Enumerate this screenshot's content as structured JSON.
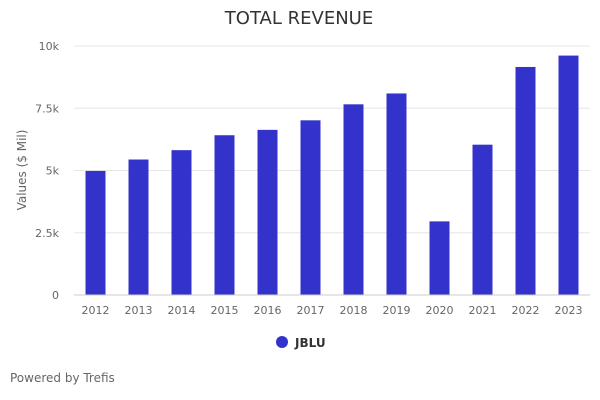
{
  "chart_data": {
    "type": "bar",
    "title": "TOTAL REVENUE",
    "xlabel": "",
    "ylabel": "Values ($ Mil)",
    "ylim": [
      0,
      10000
    ],
    "y_ticks": [
      {
        "value": 0,
        "label": "0"
      },
      {
        "value": 2500,
        "label": "2.5k"
      },
      {
        "value": 5000,
        "label": "5k"
      },
      {
        "value": 7500,
        "label": "7.5k"
      },
      {
        "value": 10000,
        "label": "10k"
      }
    ],
    "categories": [
      "2012",
      "2013",
      "2014",
      "2015",
      "2016",
      "2017",
      "2018",
      "2019",
      "2020",
      "2021",
      "2022",
      "2023"
    ],
    "series": [
      {
        "name": "JBLU",
        "color": "#3333cc",
        "values": [
          4982,
          5441,
          5817,
          6416,
          6632,
          7015,
          7658,
          8094,
          2957,
          6037,
          9158,
          9615
        ]
      }
    ],
    "legend_position": "bottom",
    "credit": "Powered by Trefis"
  }
}
